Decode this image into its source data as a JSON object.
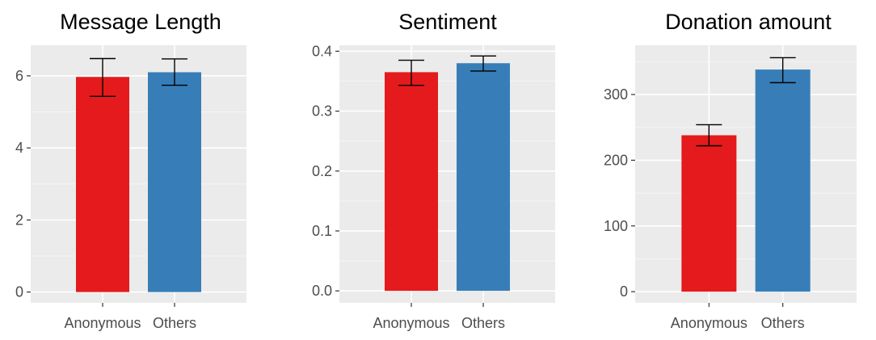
{
  "colors": {
    "panel_bg": "#EBEBEB",
    "grid_major": "#FFFFFF",
    "grid_minor": "#F5F5F5",
    "Anonymous": "#E41A1C",
    "Others": "#377EB8",
    "tick_text": "#4D4D4D",
    "tick_mark": "#333333",
    "errorbar": "#000000"
  },
  "chart_data": [
    {
      "type": "bar",
      "title": "Message Length",
      "categories": [
        "Anonymous",
        "Others"
      ],
      "values": [
        5.97,
        6.1
      ],
      "error": [
        [
          5.43,
          6.48
        ],
        [
          5.74,
          6.47
        ]
      ],
      "ylim": [
        -0.3,
        6.85
      ],
      "yticks": [
        0,
        2,
        4,
        6
      ],
      "ytick_labels": [
        "0",
        "2",
        "4",
        "6"
      ],
      "xlabel": "",
      "ylabel": "",
      "grid": true,
      "legend": "none"
    },
    {
      "type": "bar",
      "title": "Sentiment",
      "categories": [
        "Anonymous",
        "Others"
      ],
      "values": [
        0.365,
        0.38
      ],
      "error": [
        [
          0.343,
          0.385
        ],
        [
          0.367,
          0.392
        ]
      ],
      "ylim": [
        -0.02,
        0.41
      ],
      "yticks": [
        0,
        0.1,
        0.2,
        0.3,
        0.4
      ],
      "ytick_labels": [
        "0.0",
        "0.1",
        "0.2",
        "0.3",
        "0.4"
      ],
      "xlabel": "",
      "ylabel": "",
      "grid": true,
      "legend": "none"
    },
    {
      "type": "bar",
      "title": "Donation amount",
      "categories": [
        "Anonymous",
        "Others"
      ],
      "values": [
        238,
        338
      ],
      "error": [
        [
          222,
          254
        ],
        [
          318,
          356
        ]
      ],
      "ylim": [
        -17,
        375
      ],
      "yticks": [
        0,
        100,
        200,
        300
      ],
      "ytick_labels": [
        "0",
        "100",
        "200",
        "300"
      ],
      "xlabel": "",
      "ylabel": "",
      "grid": true,
      "legend": "none"
    }
  ]
}
